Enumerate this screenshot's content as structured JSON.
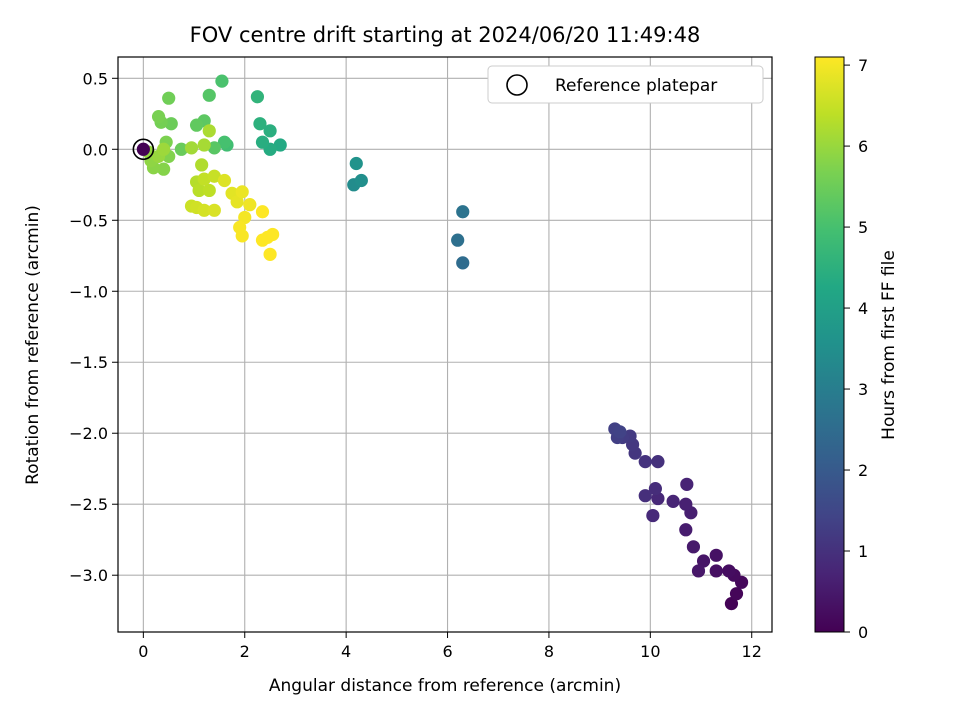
{
  "chart_data": {
    "type": "scatter",
    "title": "FOV centre drift starting at 2024/06/20 11:49:48",
    "xlabel": "Angular distance from reference (arcmin)",
    "ylabel": "Rotation from reference (arcmin)",
    "xlim": [
      -0.5,
      12.4
    ],
    "ylim": [
      -3.4,
      0.65
    ],
    "xticks": [
      0,
      2,
      4,
      6,
      8,
      10,
      12
    ],
    "yticks": [
      0.5,
      0.0,
      -0.5,
      -1.0,
      -1.5,
      -2.0,
      -2.5,
      -3.0
    ],
    "x_tick_labels": [
      "0",
      "2",
      "4",
      "6",
      "8",
      "10",
      "12"
    ],
    "y_tick_labels": [
      "0.5",
      "0.0",
      "−0.5",
      "−1.0",
      "−1.5",
      "−2.0",
      "−2.5",
      "−3.0"
    ],
    "grid": true,
    "legend": {
      "placement": "top-right",
      "entries": [
        "Reference platepar"
      ]
    },
    "colorbar": {
      "label": "Hours from first FF file",
      "range": [
        0,
        7.1
      ],
      "ticks": [
        0,
        1,
        2,
        3,
        4,
        5,
        6,
        7
      ],
      "tick_labels": [
        "0",
        "1",
        "2",
        "3",
        "4",
        "5",
        "6",
        "7"
      ],
      "colormap": "viridis"
    },
    "reference_point": {
      "x": 0,
      "y": 0
    },
    "points": [
      {
        "x": 11.6,
        "y": -3.2,
        "h": 0.05
      },
      {
        "x": 11.7,
        "y": -3.13,
        "h": 0.1
      },
      {
        "x": 11.8,
        "y": -3.05,
        "h": 0.15
      },
      {
        "x": 11.65,
        "y": -3.0,
        "h": 0.2
      },
      {
        "x": 11.55,
        "y": -2.97,
        "h": 0.25
      },
      {
        "x": 11.3,
        "y": -2.97,
        "h": 0.3
      },
      {
        "x": 11.3,
        "y": -2.86,
        "h": 0.35
      },
      {
        "x": 11.05,
        "y": -2.9,
        "h": 0.4
      },
      {
        "x": 10.95,
        "y": -2.97,
        "h": 0.45
      },
      {
        "x": 10.85,
        "y": -2.8,
        "h": 0.5
      },
      {
        "x": 10.7,
        "y": -2.68,
        "h": 0.55
      },
      {
        "x": 10.8,
        "y": -2.56,
        "h": 0.6
      },
      {
        "x": 10.7,
        "y": -2.5,
        "h": 0.65
      },
      {
        "x": 10.72,
        "y": -2.36,
        "h": 0.7
      },
      {
        "x": 10.45,
        "y": -2.48,
        "h": 0.75
      },
      {
        "x": 10.15,
        "y": -2.46,
        "h": 0.8
      },
      {
        "x": 10.05,
        "y": -2.58,
        "h": 0.85
      },
      {
        "x": 10.1,
        "y": -2.39,
        "h": 0.9
      },
      {
        "x": 9.9,
        "y": -2.44,
        "h": 0.95
      },
      {
        "x": 10.15,
        "y": -2.2,
        "h": 1.0
      },
      {
        "x": 9.9,
        "y": -2.2,
        "h": 1.05
      },
      {
        "x": 9.7,
        "y": -2.14,
        "h": 1.1
      },
      {
        "x": 9.65,
        "y": -2.08,
        "h": 1.15
      },
      {
        "x": 9.6,
        "y": -2.02,
        "h": 1.2
      },
      {
        "x": 9.45,
        "y": -2.03,
        "h": 1.25
      },
      {
        "x": 9.35,
        "y": -2.03,
        "h": 1.3
      },
      {
        "x": 9.3,
        "y": -1.97,
        "h": 1.35
      },
      {
        "x": 9.4,
        "y": -1.99,
        "h": 1.4
      },
      {
        "x": 6.3,
        "y": -0.8,
        "h": 2.5
      },
      {
        "x": 6.2,
        "y": -0.64,
        "h": 2.6
      },
      {
        "x": 6.3,
        "y": -0.44,
        "h": 2.7
      },
      {
        "x": 4.15,
        "y": -0.25,
        "h": 3.4
      },
      {
        "x": 4.3,
        "y": -0.22,
        "h": 3.5
      },
      {
        "x": 4.2,
        "y": -0.1,
        "h": 3.6
      },
      {
        "x": 2.7,
        "y": 0.03,
        "h": 4.3
      },
      {
        "x": 2.5,
        "y": 0.0,
        "h": 4.35
      },
      {
        "x": 2.35,
        "y": 0.05,
        "h": 4.4
      },
      {
        "x": 2.5,
        "y": 0.13,
        "h": 4.45
      },
      {
        "x": 2.3,
        "y": 0.18,
        "h": 4.5
      },
      {
        "x": 2.25,
        "y": 0.37,
        "h": 4.6
      },
      {
        "x": 1.65,
        "y": 0.03,
        "h": 4.9
      },
      {
        "x": 1.6,
        "y": 0.05,
        "h": 5.0
      },
      {
        "x": 1.55,
        "y": 0.48,
        "h": 5.05
      },
      {
        "x": 1.3,
        "y": 0.38,
        "h": 5.2
      },
      {
        "x": 1.4,
        "y": 0.01,
        "h": 5.25
      },
      {
        "x": 1.2,
        "y": 0.2,
        "h": 5.3
      },
      {
        "x": 1.05,
        "y": 0.17,
        "h": 5.35
      },
      {
        "x": 0.75,
        "y": 0.0,
        "h": 5.45
      },
      {
        "x": 0.55,
        "y": 0.18,
        "h": 5.5
      },
      {
        "x": 0.5,
        "y": 0.36,
        "h": 5.55
      },
      {
        "x": 0.35,
        "y": 0.19,
        "h": 5.6
      },
      {
        "x": 0.3,
        "y": 0.23,
        "h": 5.65
      },
      {
        "x": 0.45,
        "y": 0.05,
        "h": 5.7
      },
      {
        "x": 0.5,
        "y": -0.05,
        "h": 5.75
      },
      {
        "x": 0.4,
        "y": -0.14,
        "h": 5.8
      },
      {
        "x": 0.2,
        "y": -0.13,
        "h": 5.85
      },
      {
        "x": 0.15,
        "y": -0.08,
        "h": 5.9
      },
      {
        "x": 0.1,
        "y": -0.02,
        "h": 5.95
      },
      {
        "x": 0.3,
        "y": -0.05,
        "h": 6.0
      },
      {
        "x": 0.4,
        "y": 0.0,
        "h": 6.05
      },
      {
        "x": 0.95,
        "y": 0.01,
        "h": 6.1
      },
      {
        "x": 1.2,
        "y": 0.03,
        "h": 6.15
      },
      {
        "x": 1.3,
        "y": 0.13,
        "h": 6.2
      },
      {
        "x": 1.15,
        "y": -0.11,
        "h": 6.25
      },
      {
        "x": 1.05,
        "y": -0.23,
        "h": 6.3
      },
      {
        "x": 1.1,
        "y": -0.29,
        "h": 6.35
      },
      {
        "x": 1.3,
        "y": -0.29,
        "h": 6.4
      },
      {
        "x": 1.2,
        "y": -0.21,
        "h": 6.45
      },
      {
        "x": 1.4,
        "y": -0.19,
        "h": 6.5
      },
      {
        "x": 0.95,
        "y": -0.4,
        "h": 6.55
      },
      {
        "x": 1.05,
        "y": -0.41,
        "h": 6.6
      },
      {
        "x": 1.2,
        "y": -0.43,
        "h": 6.65
      },
      {
        "x": 1.4,
        "y": -0.43,
        "h": 6.7
      },
      {
        "x": 1.6,
        "y": -0.22,
        "h": 6.75
      },
      {
        "x": 1.75,
        "y": -0.31,
        "h": 6.8
      },
      {
        "x": 1.85,
        "y": -0.37,
        "h": 6.85
      },
      {
        "x": 1.95,
        "y": -0.3,
        "h": 6.9
      },
      {
        "x": 2.1,
        "y": -0.39,
        "h": 6.95
      },
      {
        "x": 2.0,
        "y": -0.48,
        "h": 7.0
      },
      {
        "x": 1.9,
        "y": -0.55,
        "h": 7.05
      },
      {
        "x": 1.95,
        "y": -0.61,
        "h": 7.05
      },
      {
        "x": 2.35,
        "y": -0.44,
        "h": 7.1
      },
      {
        "x": 2.35,
        "y": -0.64,
        "h": 7.1
      },
      {
        "x": 2.45,
        "y": -0.62,
        "h": 7.1
      },
      {
        "x": 2.55,
        "y": -0.6,
        "h": 7.1
      },
      {
        "x": 2.5,
        "y": -0.74,
        "h": 7.1
      }
    ]
  }
}
